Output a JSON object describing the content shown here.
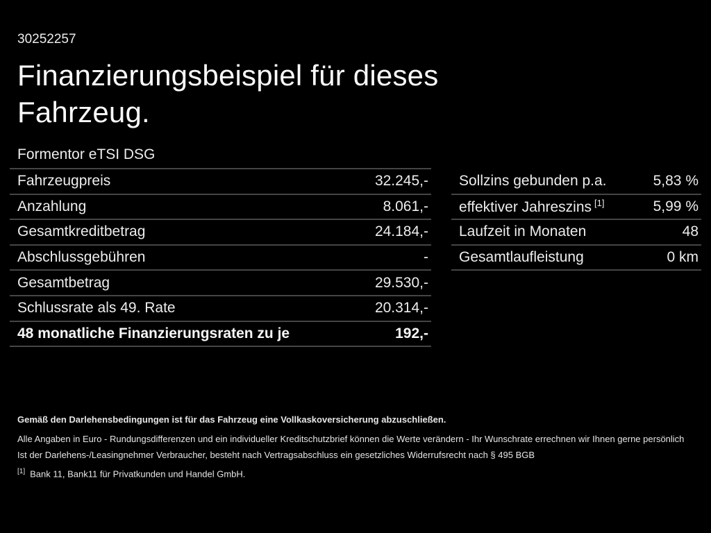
{
  "page": {
    "vehicle_id": "30252257",
    "title_line1": "Finanzierungsbeispiel für dieses",
    "title_line2": "Fahrzeug.",
    "model": "Formentor eTSI DSG"
  },
  "financing_table": {
    "rows": [
      {
        "label": "Fahrzeugpreis",
        "value": "32.245,-"
      },
      {
        "label": "Anzahlung",
        "value": "8.061,-"
      },
      {
        "label": "Gesamtkreditbetrag",
        "value": "24.184,-"
      },
      {
        "label": "Abschlussgebühren",
        "value": "-"
      },
      {
        "label": "Gesamtbetrag",
        "value": "29.530,-"
      },
      {
        "label": "Schlussrate als 49. Rate",
        "value": "20.314,-"
      },
      {
        "label": "48 monatliche Finanzierungsraten zu je",
        "value": "192,-"
      }
    ]
  },
  "conditions_table": {
    "rows": [
      {
        "label": "Sollzins gebunden p.a.",
        "sup": "",
        "value": "5,83 %"
      },
      {
        "label": "effektiver Jahreszins",
        "sup": "[1]",
        "value": "5,99 %"
      },
      {
        "label": "Laufzeit in Monaten",
        "sup": "",
        "value": "48"
      },
      {
        "label": "Gesamtlaufleistung",
        "sup": "",
        "value": "0 km"
      }
    ]
  },
  "footer": {
    "line1": "Gemäß den Darlehensbedingungen ist für das Fahrzeug eine Vollkaskoversicherung abzuschließen.",
    "line2": "Alle Angaben in Euro - Rundungsdifferenzen und ein individueller Kreditschutzbrief können die Werte verändern - Ihr Wunschrate errechnen wir Ihnen gerne persönlich",
    "line3": "Ist der Darlehens-/Leasingnehmer Verbraucher, besteht nach Vertragsabschluss ein gesetzliches Widerrufsrecht nach § 495 BGB",
    "footnote_marker": "[1]",
    "footnote_text": "Bank 11, Bank11 für Privatkunden und Handel GmbH."
  },
  "colors": {
    "background": "#000000",
    "text": "#ededed",
    "divider": "#454545"
  }
}
